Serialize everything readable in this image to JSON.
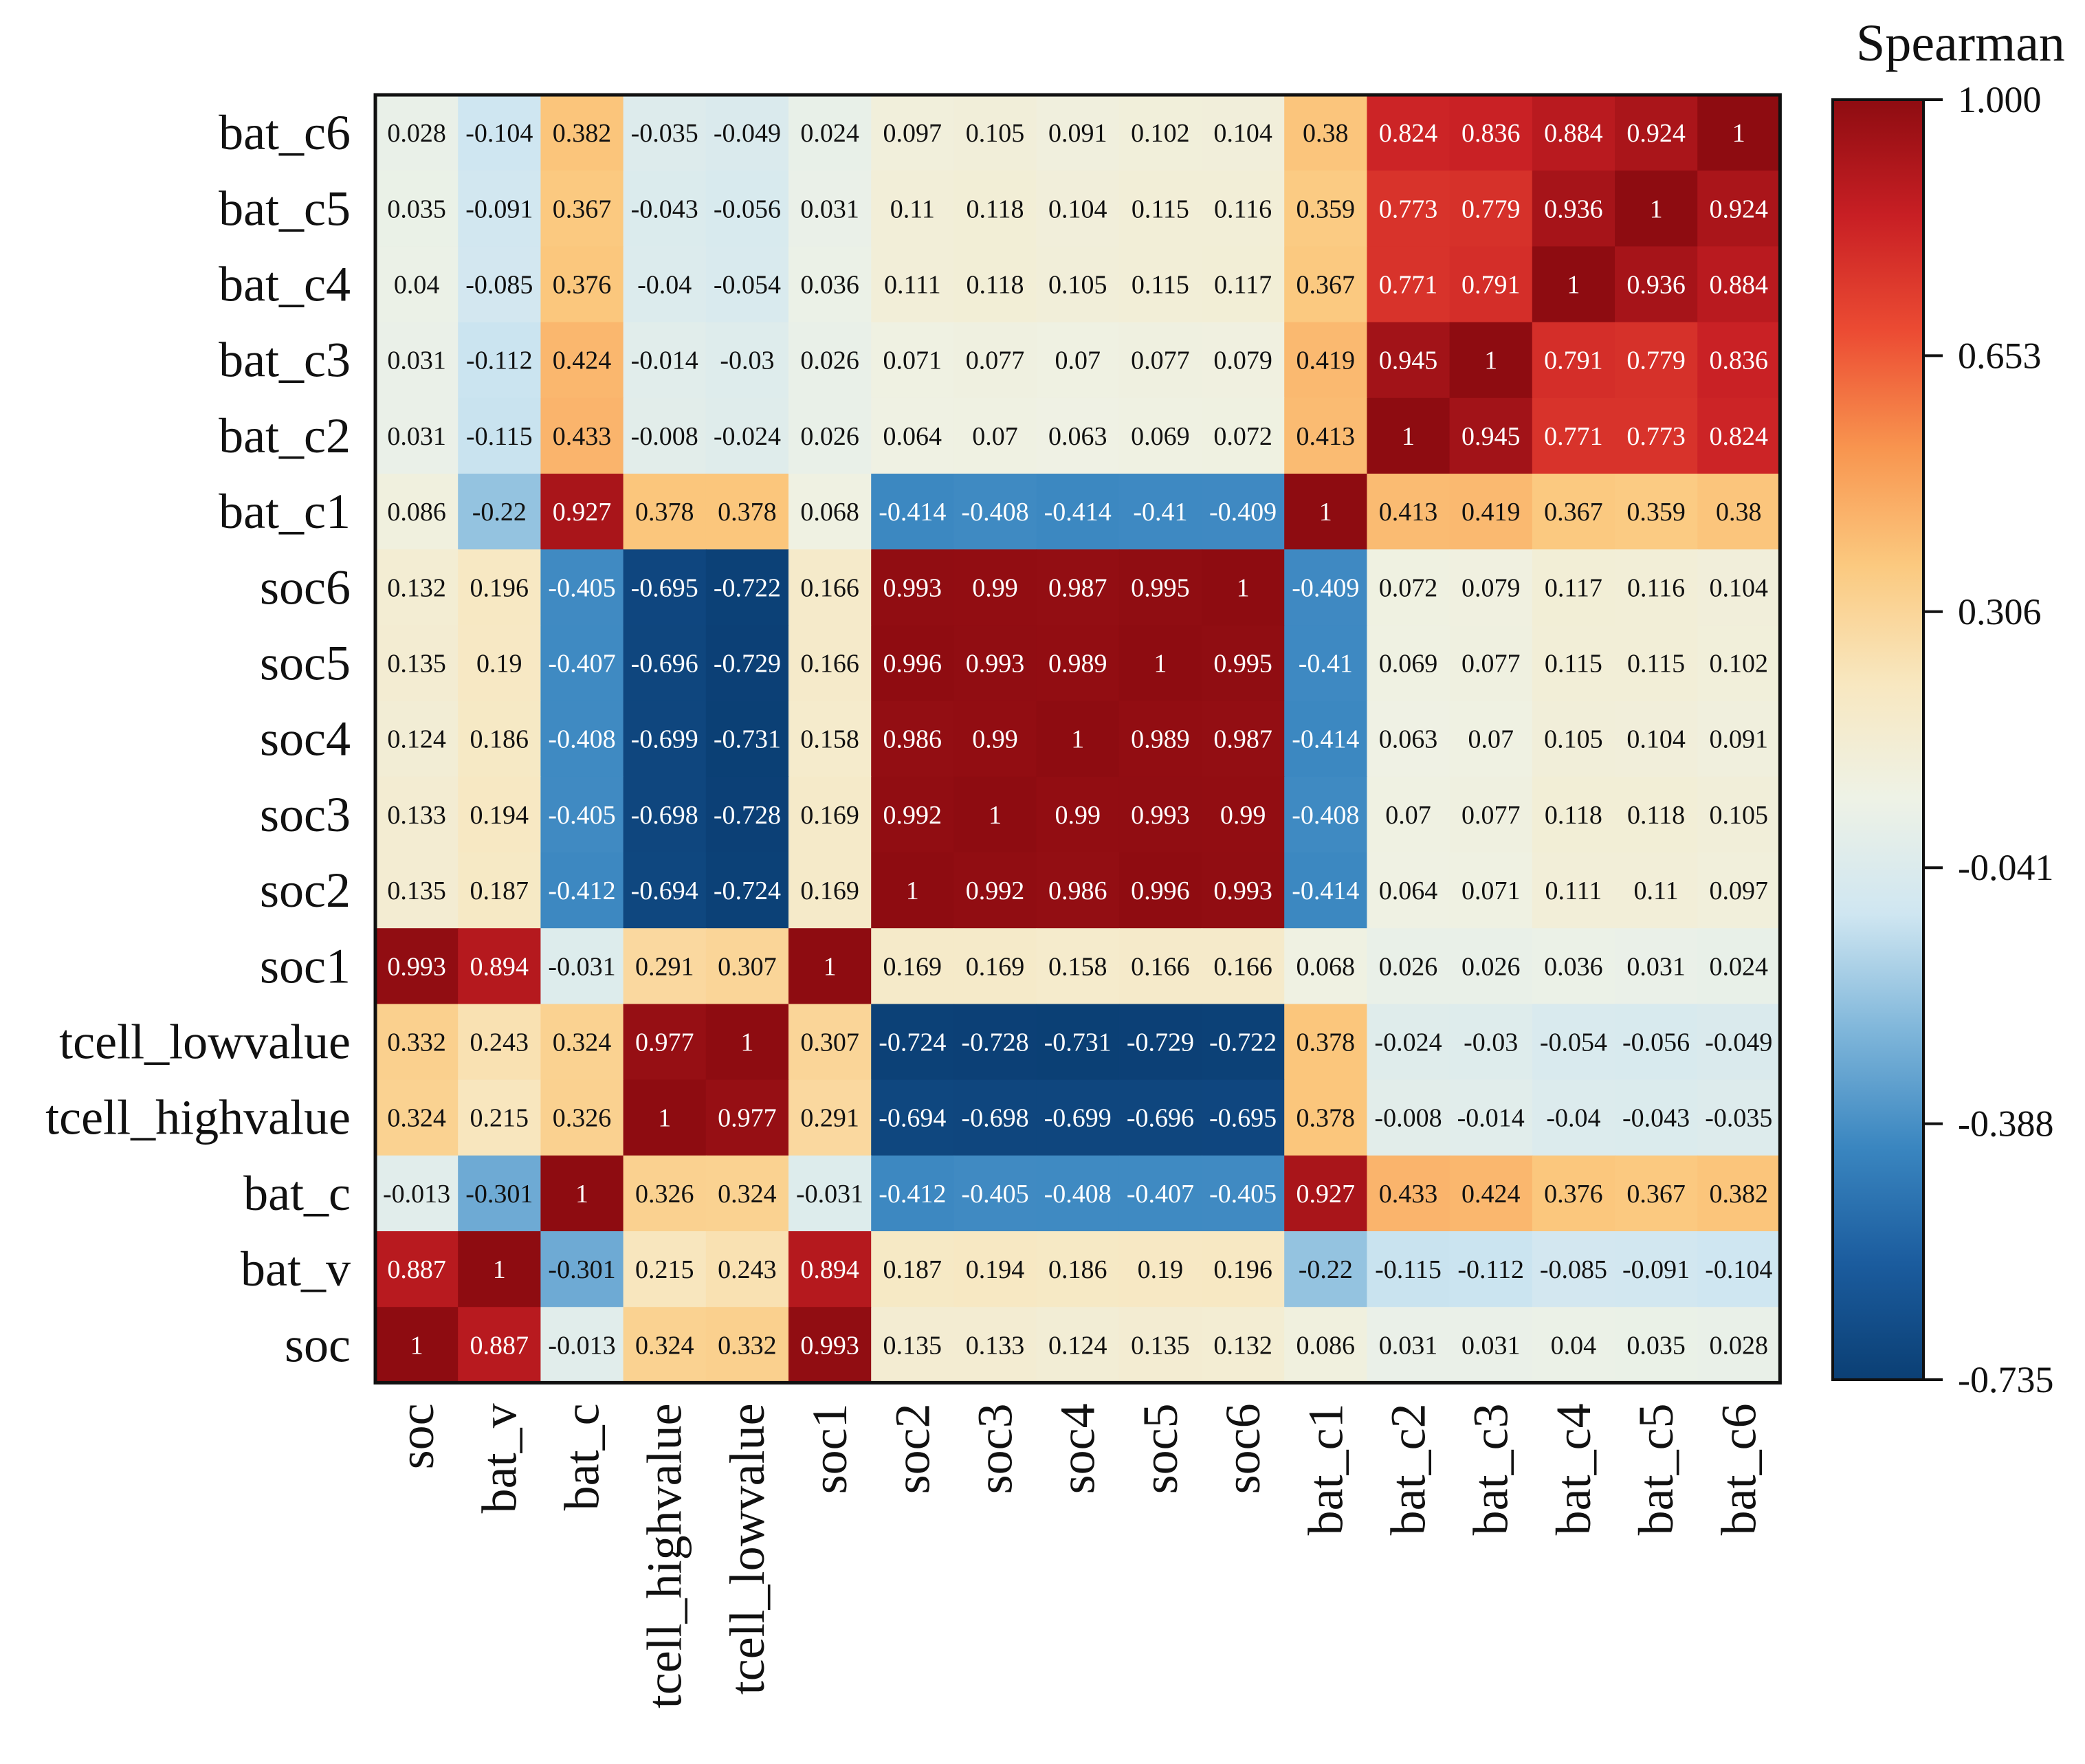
{
  "chart_data": {
    "type": "heatmap",
    "title": "",
    "xlabel": "",
    "ylabel": "",
    "columns": [
      "soc",
      "bat_v",
      "bat_c",
      "tcell_highvalue",
      "tcell_lowvalue",
      "soc1",
      "soc2",
      "soc3",
      "soc4",
      "soc5",
      "soc6",
      "bat_c1",
      "bat_c2",
      "bat_c3",
      "bat_c4",
      "bat_c5",
      "bat_c6"
    ],
    "rows_top_to_bottom": [
      "bat_c6",
      "bat_c5",
      "bat_c4",
      "bat_c3",
      "bat_c2",
      "bat_c1",
      "soc6",
      "soc5",
      "soc4",
      "soc3",
      "soc2",
      "soc1",
      "tcell_lowvalue",
      "tcell_highvalue",
      "bat_c",
      "bat_v",
      "soc"
    ],
    "values": [
      [
        "0.028",
        "-0.104",
        "0.382",
        "-0.035",
        "-0.049",
        "0.024",
        "0.097",
        "0.105",
        "0.091",
        "0.102",
        "0.104",
        "0.38",
        "0.824",
        "0.836",
        "0.884",
        "0.924",
        "1"
      ],
      [
        "0.035",
        "-0.091",
        "0.367",
        "-0.043",
        "-0.056",
        "0.031",
        "0.11",
        "0.118",
        "0.104",
        "0.115",
        "0.116",
        "0.359",
        "0.773",
        "0.779",
        "0.936",
        "1",
        "0.924"
      ],
      [
        "0.04",
        "-0.085",
        "0.376",
        "-0.04",
        "-0.054",
        "0.036",
        "0.111",
        "0.118",
        "0.105",
        "0.115",
        "0.117",
        "0.367",
        "0.771",
        "0.791",
        "1",
        "0.936",
        "0.884"
      ],
      [
        "0.031",
        "-0.112",
        "0.424",
        "-0.014",
        "-0.03",
        "0.026",
        "0.071",
        "0.077",
        "0.07",
        "0.077",
        "0.079",
        "0.419",
        "0.945",
        "1",
        "0.791",
        "0.779",
        "0.836"
      ],
      [
        "0.031",
        "-0.115",
        "0.433",
        "-0.008",
        "-0.024",
        "0.026",
        "0.064",
        "0.07",
        "0.063",
        "0.069",
        "0.072",
        "0.413",
        "1",
        "0.945",
        "0.771",
        "0.773",
        "0.824"
      ],
      [
        "0.086",
        "-0.22",
        "0.927",
        "0.378",
        "0.378",
        "0.068",
        "-0.414",
        "-0.408",
        "-0.414",
        "-0.41",
        "-0.409",
        "1",
        "0.413",
        "0.419",
        "0.367",
        "0.359",
        "0.38"
      ],
      [
        "0.132",
        "0.196",
        "-0.405",
        "-0.695",
        "-0.722",
        "0.166",
        "0.993",
        "0.99",
        "0.987",
        "0.995",
        "1",
        "-0.409",
        "0.072",
        "0.079",
        "0.117",
        "0.116",
        "0.104"
      ],
      [
        "0.135",
        "0.19",
        "-0.407",
        "-0.696",
        "-0.729",
        "0.166",
        "0.996",
        "0.993",
        "0.989",
        "1",
        "0.995",
        "-0.41",
        "0.069",
        "0.077",
        "0.115",
        "0.115",
        "0.102"
      ],
      [
        "0.124",
        "0.186",
        "-0.408",
        "-0.699",
        "-0.731",
        "0.158",
        "0.986",
        "0.99",
        "1",
        "0.989",
        "0.987",
        "-0.414",
        "0.063",
        "0.07",
        "0.105",
        "0.104",
        "0.091"
      ],
      [
        "0.133",
        "0.194",
        "-0.405",
        "-0.698",
        "-0.728",
        "0.169",
        "0.992",
        "1",
        "0.99",
        "0.993",
        "0.99",
        "-0.408",
        "0.07",
        "0.077",
        "0.118",
        "0.118",
        "0.105"
      ],
      [
        "0.135",
        "0.187",
        "-0.412",
        "-0.694",
        "-0.724",
        "0.169",
        "1",
        "0.992",
        "0.986",
        "0.996",
        "0.993",
        "-0.414",
        "0.064",
        "0.071",
        "0.111",
        "0.11",
        "0.097"
      ],
      [
        "0.993",
        "0.894",
        "-0.031",
        "0.291",
        "0.307",
        "1",
        "0.169",
        "0.169",
        "0.158",
        "0.166",
        "0.166",
        "0.068",
        "0.026",
        "0.026",
        "0.036",
        "0.031",
        "0.024"
      ],
      [
        "0.332",
        "0.243",
        "0.324",
        "0.977",
        "1",
        "0.307",
        "-0.724",
        "-0.728",
        "-0.731",
        "-0.729",
        "-0.722",
        "0.378",
        "-0.024",
        "-0.03",
        "-0.054",
        "-0.056",
        "-0.049"
      ],
      [
        "0.324",
        "0.215",
        "0.326",
        "1",
        "0.977",
        "0.291",
        "-0.694",
        "-0.698",
        "-0.699",
        "-0.696",
        "-0.695",
        "0.378",
        "-0.008",
        "-0.014",
        "-0.04",
        "-0.043",
        "-0.035"
      ],
      [
        "-0.013",
        "-0.301",
        "1",
        "0.326",
        "0.324",
        "-0.031",
        "-0.412",
        "-0.405",
        "-0.408",
        "-0.407",
        "-0.405",
        "0.927",
        "0.433",
        "0.424",
        "0.376",
        "0.367",
        "0.382"
      ],
      [
        "0.887",
        "1",
        "-0.301",
        "0.215",
        "0.243",
        "0.894",
        "0.187",
        "0.194",
        "0.186",
        "0.19",
        "0.196",
        "-0.22",
        "-0.115",
        "-0.112",
        "-0.085",
        "-0.091",
        "-0.104"
      ],
      [
        "1",
        "0.887",
        "-0.013",
        "0.324",
        "0.332",
        "0.993",
        "0.135",
        "0.133",
        "0.124",
        "0.135",
        "0.132",
        "0.086",
        "0.031",
        "0.031",
        "0.04",
        "0.035",
        "0.028"
      ]
    ],
    "colorbar": {
      "title": "Spearman",
      "min": -0.735,
      "max": 1.0,
      "ticks": [
        "1.000",
        "0.653",
        "0.306",
        "-0.041",
        "-0.388",
        "-0.735"
      ],
      "colors": [
        "#0b3f74",
        "#1b5c9e",
        "#3a86c0",
        "#7fb6da",
        "#cfe6f1",
        "#eef2e6",
        "#f8e7bf",
        "#fbc97f",
        "#f8954f",
        "#ec4c33",
        "#c81f24",
        "#8e0c11"
      ]
    }
  }
}
